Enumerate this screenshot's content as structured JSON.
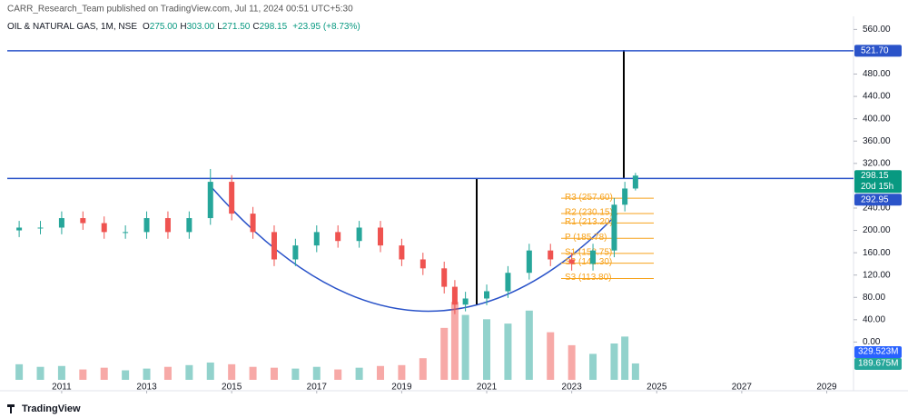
{
  "header": {
    "publisher": "CARR_Research_Team published on TradingView.com, Jul 11, 2024 00:51 UTC+5:30",
    "logo": "TradingView"
  },
  "chart_data": {
    "type": "candlestick",
    "legend": {
      "symbol": "OIL & NATURAL GAS, 1M, NSE",
      "o_label": "O",
      "o": "275.00",
      "h_label": "H",
      "h": "303.00",
      "l_label": "L",
      "l": "271.50",
      "c_label": "C",
      "c": "298.15",
      "change": "+23.95 (+8.73%)"
    },
    "x": [
      2010.0,
      2010.5,
      2011.0,
      2011.5,
      2012.0,
      2012.5,
      2013.0,
      2013.5,
      2014.0,
      2014.5,
      2015.0,
      2015.5,
      2016.0,
      2016.5,
      2017.0,
      2017.5,
      2018.0,
      2018.5,
      2019.0,
      2019.5,
      2020.0,
      2020.25,
      2020.5,
      2021.0,
      2021.5,
      2022.0,
      2022.5,
      2023.0,
      2023.5,
      2024.0,
      2024.25,
      2024.5
    ],
    "open": [
      200,
      205,
      205,
      222,
      213,
      197,
      197,
      222,
      197,
      222,
      287,
      230,
      197,
      148,
      173,
      197,
      181,
      205,
      173,
      148,
      132,
      99,
      67,
      78,
      91,
      124,
      164,
      148,
      140,
      164,
      246,
      275
    ],
    "high": [
      217,
      217,
      234,
      234,
      225,
      209,
      234,
      234,
      234,
      310,
      299,
      242,
      209,
      185,
      209,
      209,
      217,
      217,
      185,
      160,
      144,
      111,
      90,
      103,
      136,
      176,
      176,
      160,
      176,
      258,
      287,
      303
    ],
    "low": [
      188,
      193,
      193,
      201,
      185,
      185,
      185,
      185,
      185,
      210,
      218,
      185,
      136,
      136,
      161,
      169,
      169,
      161,
      136,
      120,
      87,
      50,
      55,
      66,
      79,
      112,
      136,
      128,
      128,
      152,
      234,
      271.5
    ],
    "close": [
      205,
      205,
      222,
      213,
      197,
      197,
      222,
      197,
      222,
      287,
      230,
      197,
      148,
      173,
      197,
      181,
      205,
      173,
      148,
      132,
      99,
      67,
      78,
      91,
      124,
      164,
      148,
      140,
      164,
      246,
      275,
      298.15
    ],
    "volume": [
      180,
      150,
      160,
      120,
      140,
      110,
      130,
      150,
      170,
      200,
      180,
      150,
      140,
      130,
      150,
      120,
      140,
      160,
      170,
      250,
      600,
      900,
      750,
      700,
      650,
      800,
      550,
      400,
      300,
      420,
      500,
      189.675
    ],
    "up_color": "#26a69a",
    "down_color": "#ef5350",
    "xlim": [
      2009.72,
      2029.63
    ],
    "xticks": [
      2011,
      2013,
      2015,
      2017,
      2019,
      2021,
      2023,
      2025,
      2027,
      2029
    ],
    "ylim": [
      -67.7,
      583.4
    ],
    "yticks": [
      {
        "value": 0,
        "label": "0.00"
      },
      {
        "value": 40,
        "label": "40.00"
      },
      {
        "value": 80,
        "label": "80.00"
      },
      {
        "value": 120,
        "label": "120.00"
      },
      {
        "value": 160,
        "label": "160.00"
      },
      {
        "value": 200,
        "label": "200.00"
      },
      {
        "value": 240,
        "label": "240.00"
      },
      {
        "value": 320,
        "label": "320.00"
      },
      {
        "value": 360,
        "label": "360.00"
      },
      {
        "value": 400,
        "label": "400.00"
      },
      {
        "value": 440,
        "label": "440.00"
      },
      {
        "value": 480,
        "label": "480.00"
      },
      {
        "value": 560,
        "label": "560.00"
      }
    ],
    "y2lim": [
      0,
      4200
    ],
    "hlines": [
      {
        "value": 521.7,
        "label": "521.70"
      },
      {
        "value": 292.95,
        "label": "292.95"
      }
    ],
    "price_badge": {
      "value": 298.15,
      "label": "298.15",
      "countdown": "20d 15h"
    },
    "volume_badges": [
      {
        "value": 329.523,
        "label": "329.523M"
      },
      {
        "value": 189.675,
        "label": "189.675M"
      }
    ],
    "pivots": [
      {
        "label": "R3 (257.60)",
        "value": 257.6
      },
      {
        "label": "R2 (230.15)",
        "value": 230.15
      },
      {
        "label": "R1 (213.20)",
        "value": 213.2
      },
      {
        "label": "P (185.78)",
        "value": 185.78
      },
      {
        "label": "S1 (158.75)",
        "value": 158.75
      },
      {
        "label": "S2 (141.30)",
        "value": 141.3
      },
      {
        "label": "S3 (113.80)",
        "value": 113.8
      }
    ]
  }
}
